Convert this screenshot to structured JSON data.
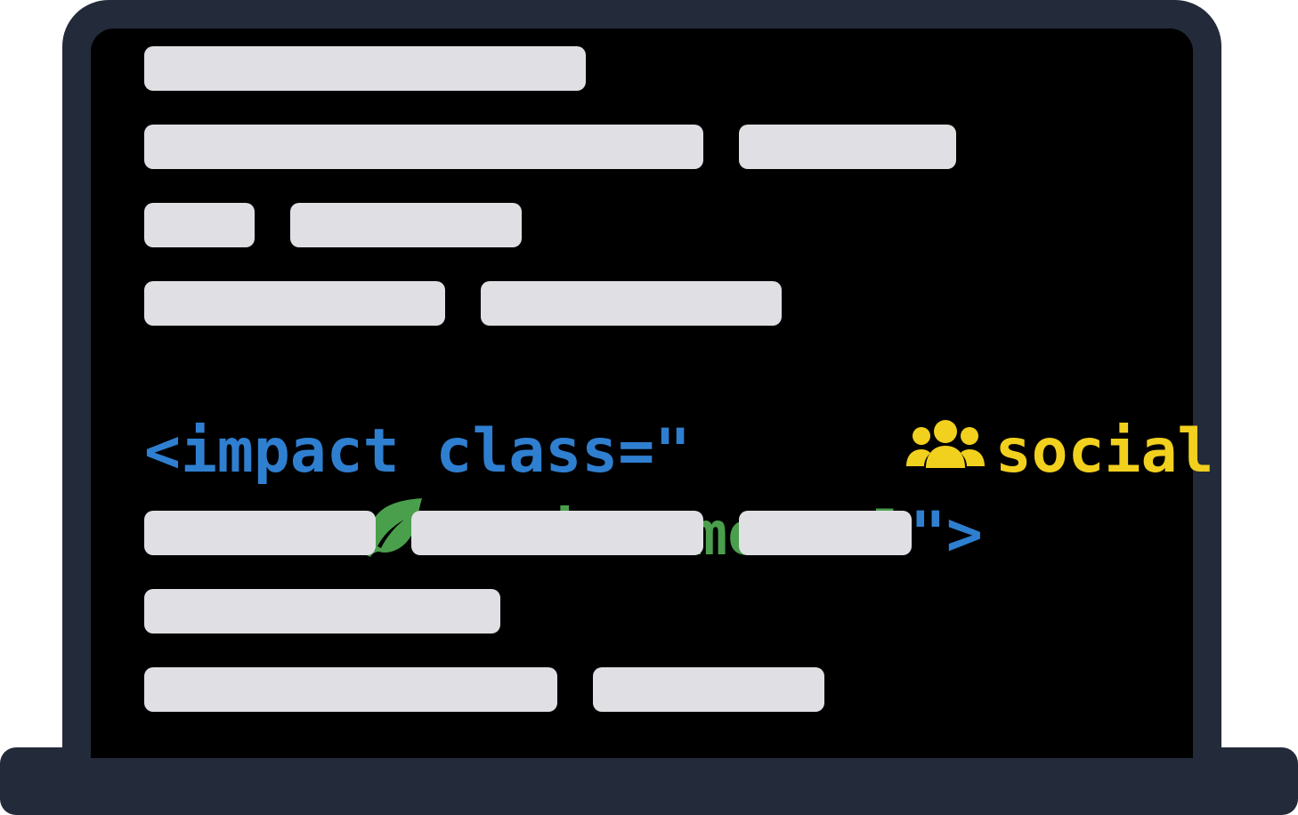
{
  "colors": {
    "frame": "#232a3a",
    "screen": "#000000",
    "placeholder": "#e0e0e4",
    "blue": "#2f7fd0",
    "yellow": "#f2d01e",
    "green": "#4a9f4c"
  },
  "code": {
    "open_tag": "<impact class=\"",
    "social_icon": "people-icon",
    "social_word": "social",
    "environmental_icon": "leaf-icon",
    "environmental_word": "environmental",
    "closing_quote": "\"",
    "closing_bracket": ">"
  }
}
